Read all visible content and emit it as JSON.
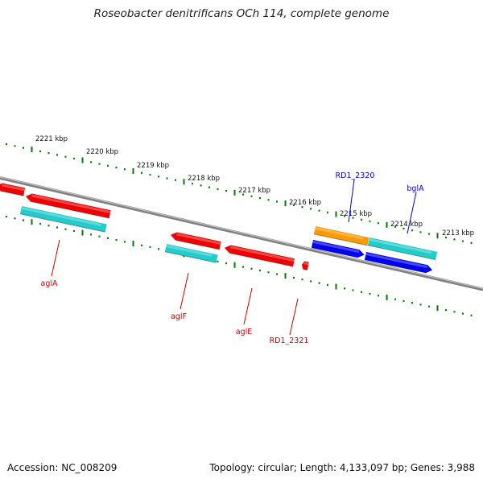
{
  "title": "Roseobacter denitrificans OCh 114, complete genome",
  "accession_text": "Accession: NC_008209",
  "topology_text": "Topology: circular; Length: 4,133,097 bp; Genes: 3,988",
  "colors": {
    "backbone": "#808080",
    "ticks": "#007a00",
    "label_red": "#cc0000",
    "label_blue": "#0000cc",
    "red": "#ee0000",
    "cyan": "#22cccc",
    "blue": "#0000ee",
    "orange": "#ff9900"
  },
  "ruler": {
    "unit": "kbp",
    "major_ticks": [
      "2221 kbp",
      "2220 kbp",
      "2219 kbp",
      "2218 kbp",
      "2217 kbp",
      "2216 kbp",
      "2215 kbp",
      "2214 kbp",
      "2213 kbp"
    ]
  },
  "genes": [
    {
      "label": "aglA",
      "strand": "-",
      "feature": "gene",
      "color": "red",
      "label_color": "red"
    },
    {
      "label": "aglA",
      "strand": "-",
      "feature": "CDS",
      "color": "cyan"
    },
    {
      "label": "aglF",
      "strand": "-",
      "feature": "gene",
      "color": "red",
      "label_color": "red"
    },
    {
      "label": "aglF",
      "strand": "-",
      "feature": "CDS",
      "color": "cyan"
    },
    {
      "label": "aglE",
      "strand": "-",
      "feature": "gene",
      "color": "red",
      "label_color": "red"
    },
    {
      "label": "RD1_2321",
      "strand": "-",
      "feature": "gene",
      "color": "red",
      "label_color": "red"
    },
    {
      "label": "RD1_2320",
      "strand": "+",
      "feature": "gene",
      "color": "orange",
      "label_color": "blue"
    },
    {
      "label": "RD1_2320",
      "strand": "+",
      "feature": "CDS",
      "color": "blue"
    },
    {
      "label": "bglA",
      "strand": "+",
      "feature": "gene",
      "color": "cyan",
      "label_color": "blue"
    },
    {
      "label": "bglA",
      "strand": "+",
      "feature": "CDS",
      "color": "blue"
    }
  ]
}
